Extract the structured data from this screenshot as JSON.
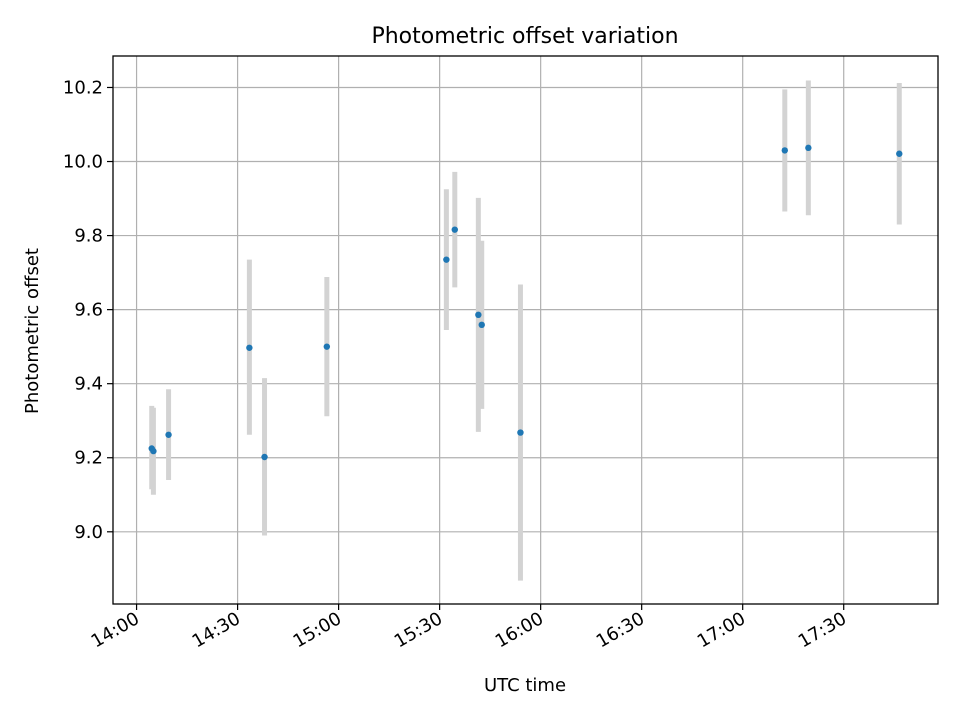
{
  "chart_data": {
    "type": "scatter",
    "title": "Photometric offset variation",
    "xlabel": "UTC time",
    "ylabel": "Photometric offset",
    "x_type": "time",
    "xlim": [
      "13:53",
      "17:58"
    ],
    "ylim": [
      8.805,
      10.285
    ],
    "x_ticks": [
      "14:00",
      "14:30",
      "15:00",
      "15:30",
      "16:00",
      "16:30",
      "17:00",
      "17:30"
    ],
    "y_ticks": [
      "9.0",
      "9.2",
      "9.4",
      "9.6",
      "9.8",
      "10.0",
      "10.2"
    ],
    "grid": true,
    "marker_color": "#1f77b4",
    "errorbar_color": "#d3d3d3",
    "series": [
      {
        "points": [
          {
            "x": "14:04:30",
            "y": 9.225,
            "err_low": 9.115,
            "err_high": 9.34
          },
          {
            "x": "14:05:00",
            "y": 9.218,
            "err_low": 9.1,
            "err_high": 9.335
          },
          {
            "x": "14:09:30",
            "y": 9.262,
            "err_low": 9.14,
            "err_high": 9.385
          },
          {
            "x": "14:33:30",
            "y": 9.497,
            "err_low": 9.262,
            "err_high": 9.735
          },
          {
            "x": "14:38:00",
            "y": 9.202,
            "err_low": 8.99,
            "err_high": 9.415
          },
          {
            "x": "14:56:30",
            "y": 9.5,
            "err_low": 9.312,
            "err_high": 9.688
          },
          {
            "x": "15:32:00",
            "y": 9.735,
            "err_low": 9.545,
            "err_high": 9.925
          },
          {
            "x": "15:34:30",
            "y": 9.816,
            "err_low": 9.66,
            "err_high": 9.972
          },
          {
            "x": "15:41:30",
            "y": 9.586,
            "err_low": 9.27,
            "err_high": 9.902
          },
          {
            "x": "15:42:30",
            "y": 9.559,
            "err_low": 9.332,
            "err_high": 9.786
          },
          {
            "x": "15:54:00",
            "y": 9.268,
            "err_low": 8.868,
            "err_high": 9.668
          },
          {
            "x": "17:12:30",
            "y": 10.03,
            "err_low": 9.865,
            "err_high": 10.195
          },
          {
            "x": "17:19:30",
            "y": 10.037,
            "err_low": 9.855,
            "err_high": 10.219
          },
          {
            "x": "17:46:30",
            "y": 10.021,
            "err_low": 9.83,
            "err_high": 10.212
          }
        ]
      }
    ]
  }
}
